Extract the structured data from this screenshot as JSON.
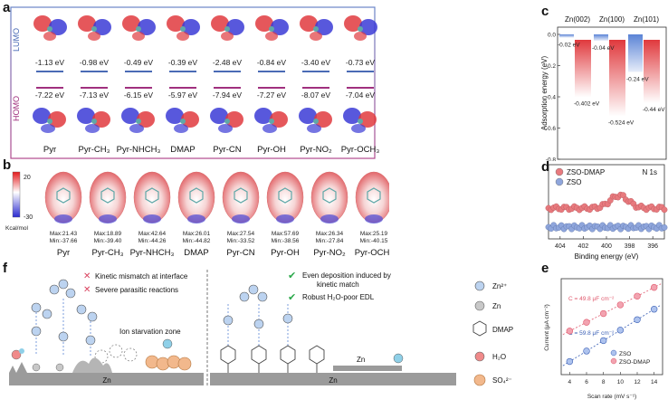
{
  "panel_letters": {
    "a": "a",
    "b": "b",
    "c": "c",
    "d": "d",
    "e": "e",
    "f": "f"
  },
  "panel_a": {
    "lumo_label": "LUMO",
    "homo_label": "HOMO",
    "molecules": [
      {
        "name": "Pyr",
        "lumo": "-1.13 eV",
        "homo": "-7.22 eV"
      },
      {
        "name": "Pyr-CH₃",
        "lumo": "-0.98 eV",
        "homo": "-7.13 eV"
      },
      {
        "name": "Pyr-NHCH₃",
        "lumo": "-0.49 eV",
        "homo": "-6.15 eV"
      },
      {
        "name": "DMAP",
        "lumo": "-0.39 eV",
        "homo": "-5.97 eV"
      },
      {
        "name": "Pyr-CN",
        "lumo": "-2.48 eV",
        "homo": "-7.94 eV"
      },
      {
        "name": "Pyr-OH",
        "lumo": "-0.84 eV",
        "homo": "-7.27 eV"
      },
      {
        "name": "Pyr-NO₂",
        "lumo": "-3.40 eV",
        "homo": "-8.07 eV"
      },
      {
        "name": "Pyr-OCH₃",
        "lumo": "-0.73 eV",
        "homo": "-7.04 eV"
      }
    ]
  },
  "panel_b": {
    "scale_max": "20",
    "scale_min": "-30",
    "scale_unit": "Kcal/mol",
    "maps": [
      {
        "name": "Pyr",
        "max": "Max:21.43",
        "min": "Min:-37.66"
      },
      {
        "name": "Pyr-CH₃",
        "max": "Max:18.89",
        "min": "Min:-39.40"
      },
      {
        "name": "Pyr-NHCH₃",
        "max": "Max:42.64",
        "min": "Min:-44.26"
      },
      {
        "name": "DMAP",
        "max": "Max:26.01",
        "min": "Min:-44.82"
      },
      {
        "name": "Pyr-CN",
        "max": "Max:27.54",
        "min": "Min:-33.52"
      },
      {
        "name": "Pyr-OH",
        "max": "Max:57.69",
        "min": "Min:-38.56"
      },
      {
        "name": "Pyr-NO₂",
        "max": "Max:26.34",
        "min": "Min:-27.84"
      },
      {
        "name": "Pyr-OCH₃",
        "max": "Max:25.19",
        "min": "Min:-40.15"
      }
    ]
  },
  "panel_c": {
    "ylabel": "Adsorption energy (eV)",
    "ticks": [
      "0.0",
      "-0.2",
      "-0.4",
      "-0.6",
      "-0.8"
    ],
    "facets": [
      {
        "name": "Zn(002)",
        "small": "-0.02 eV",
        "large": "-0.402 eV"
      },
      {
        "name": "Zn(100)",
        "small": "-0.04 eV",
        "large": "-0.524 eV"
      },
      {
        "name": "Zn(101)",
        "small": "-0.24 eV",
        "large": "-0.44 eV"
      }
    ]
  },
  "panel_d": {
    "title": "N 1s",
    "xlabel": "Binding energy (eV)",
    "xticks": [
      "404",
      "402",
      "400",
      "398",
      "396"
    ],
    "legend": [
      "ZSO-DMAP",
      "ZSO"
    ],
    "colors": {
      "dmap": "#e87a7e",
      "zso": "#8fa6dc"
    }
  },
  "panel_e": {
    "xlabel": "Scan rate (mV s⁻¹)",
    "ylabel": "Current (μA cm⁻²)",
    "c_dmap": "C = 49.8 μF cm⁻²",
    "c_zso": "C = 59.8 μF cm⁻²",
    "legend": [
      "ZSO",
      "ZSO-DMAP"
    ],
    "xticks": [
      "4",
      "6",
      "8",
      "10",
      "12",
      "14"
    ]
  },
  "chart_data": {
    "type": "scatter",
    "xlabel": "Scan rate (mV s⁻¹)",
    "ylabel": "Current (μA cm⁻²)",
    "x": [
      4,
      6,
      8,
      10,
      12,
      14
    ],
    "xlim": [
      3,
      15
    ],
    "series": [
      {
        "name": "ZSO",
        "values": [
          0.25,
          0.37,
          0.49,
          0.61,
          0.73,
          0.85
        ]
      },
      {
        "name": "ZSO-DMAP",
        "values": [
          0.6,
          0.7,
          0.8,
          0.9,
          1.0,
          1.1
        ]
      }
    ]
  },
  "panel_f": {
    "left_notes": [
      "Kinetic mismatch at interface",
      "Severe parasitic reactions"
    ],
    "starvation": "Ion starvation zone",
    "right_notes": [
      "Even deposition induced by kinetic match",
      "Robust H₂O-poor EDL"
    ],
    "zn": "Zn",
    "legend": [
      {
        "label": "Zn²⁺"
      },
      {
        "label": "Zn"
      },
      {
        "label": "DMAP"
      },
      {
        "label": "H₂O"
      },
      {
        "label": "SO₄²⁻"
      }
    ]
  }
}
